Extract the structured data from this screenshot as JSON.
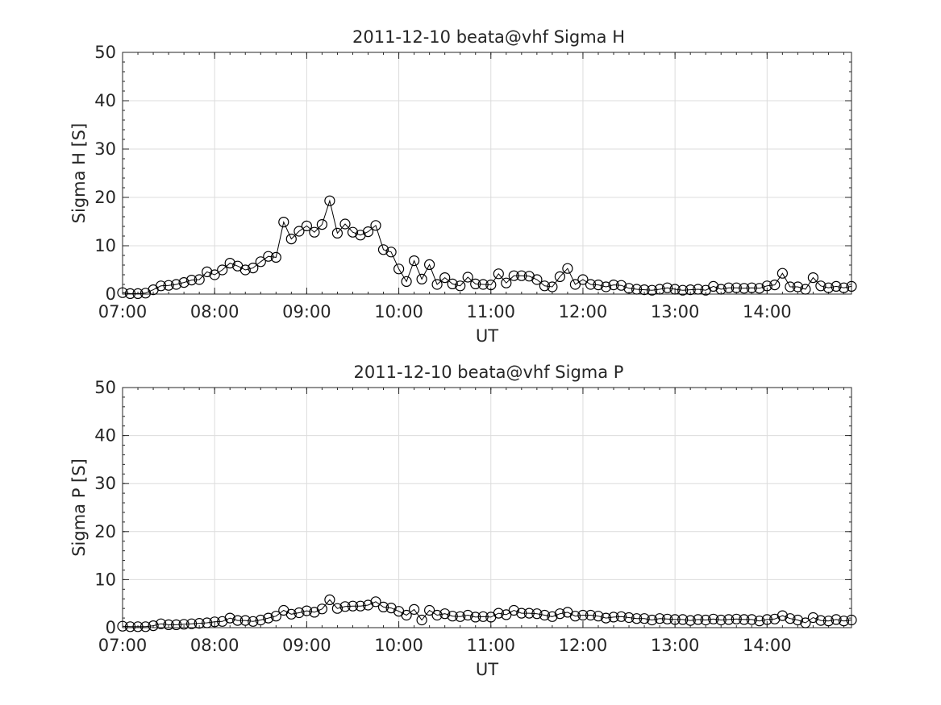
{
  "chart_data": [
    {
      "type": "line",
      "title": "2011-12-10  beata@vhf Sigma H",
      "xlabel": "UT",
      "ylabel": "Sigma H [S]",
      "xlim": [
        "07:00",
        "14:55"
      ],
      "ylim": [
        0,
        50
      ],
      "yticks": [
        0,
        10,
        20,
        30,
        40,
        50
      ],
      "xticks": [
        "07:00",
        "08:00",
        "09:00",
        "10:00",
        "11:00",
        "12:00",
        "13:00",
        "14:00"
      ],
      "grid": true,
      "marker": "open-circle",
      "line_color": "#000000",
      "x_start": "07:00",
      "x_step_minutes": 5,
      "values": [
        0.3,
        0.1,
        0.1,
        0.2,
        0.9,
        1.7,
        1.8,
        2.0,
        2.4,
        2.9,
        3.0,
        4.6,
        4.0,
        5.0,
        6.4,
        5.8,
        5.0,
        5.4,
        6.7,
        7.8,
        7.6,
        14.9,
        11.4,
        13.0,
        14.1,
        12.8,
        14.4,
        19.3,
        12.6,
        14.5,
        12.8,
        12.2,
        12.9,
        14.2,
        9.2,
        8.7,
        5.2,
        2.6,
        6.9,
        3.1,
        6.1,
        2.0,
        3.4,
        2.1,
        1.7,
        3.5,
        2.1,
        2.0,
        1.9,
        4.2,
        2.3,
        3.8,
        3.8,
        3.7,
        3.0,
        1.7,
        1.5,
        3.6,
        5.3,
        2.0,
        3.0,
        2.0,
        1.9,
        1.5,
        1.9,
        1.8,
        1.2,
        1.0,
        0.9,
        0.8,
        1.0,
        1.3,
        1.0,
        0.8,
        0.9,
        1.0,
        0.8,
        1.6,
        1.0,
        1.3,
        1.3,
        1.2,
        1.3,
        1.2,
        1.7,
        1.9,
        4.3,
        1.5,
        1.5,
        1.0,
        3.4,
        1.7,
        1.3,
        1.6,
        1.3,
        1.6
      ]
    },
    {
      "type": "line",
      "title": "2011-12-10  beata@vhf Sigma P",
      "xlabel": "UT",
      "ylabel": "Sigma P [S]",
      "xlim": [
        "07:00",
        "14:55"
      ],
      "ylim": [
        0,
        50
      ],
      "yticks": [
        0,
        10,
        20,
        30,
        40,
        50
      ],
      "xticks": [
        "07:00",
        "08:00",
        "09:00",
        "10:00",
        "11:00",
        "12:00",
        "13:00",
        "14:00"
      ],
      "grid": true,
      "marker": "open-circle",
      "line_color": "#000000",
      "x_start": "07:00",
      "x_step_minutes": 5,
      "values": [
        0.3,
        0.2,
        0.2,
        0.2,
        0.4,
        0.8,
        0.6,
        0.6,
        0.7,
        0.8,
        0.9,
        1.0,
        1.2,
        1.3,
        2.0,
        1.5,
        1.5,
        1.3,
        1.6,
        2.0,
        2.4,
        3.6,
        2.8,
        3.1,
        3.5,
        3.2,
        3.9,
        5.8,
        4.0,
        4.4,
        4.5,
        4.5,
        4.7,
        5.4,
        4.3,
        4.1,
        3.4,
        2.6,
        3.8,
        1.6,
        3.6,
        2.6,
        2.9,
        2.4,
        2.3,
        2.6,
        2.2,
        2.3,
        2.2,
        3.0,
        2.7,
        3.6,
        3.0,
        3.0,
        2.9,
        2.6,
        2.3,
        2.9,
        3.2,
        2.4,
        2.6,
        2.6,
        2.4,
        2.0,
        2.2,
        2.3,
        2.1,
        1.9,
        1.9,
        1.6,
        1.9,
        1.8,
        1.7,
        1.7,
        1.5,
        1.7,
        1.6,
        1.8,
        1.6,
        1.7,
        1.8,
        1.7,
        1.7,
        1.4,
        1.7,
        1.8,
        2.5,
        1.9,
        1.6,
        1.0,
        2.1,
        1.5,
        1.4,
        1.7,
        1.4,
        1.6
      ]
    }
  ]
}
